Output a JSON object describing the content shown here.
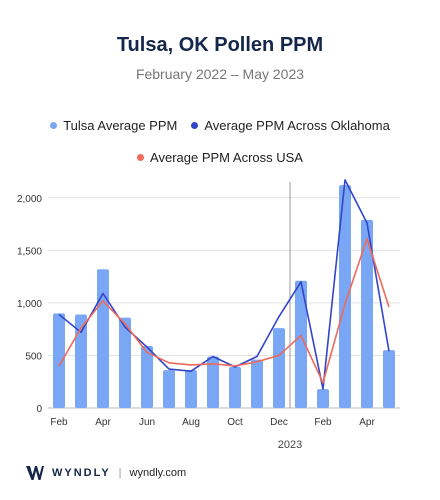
{
  "header": {
    "title": "Tulsa, OK Pollen PPM",
    "subtitle": "February 2022 – May 2023"
  },
  "legend": [
    {
      "label": "Tulsa Average PPM",
      "color": "#7aa7f5",
      "shape": "dot"
    },
    {
      "label": "Average PPM Across Oklahoma",
      "color": "#3345c8",
      "shape": "dot"
    },
    {
      "label": "Average PPM Across USA",
      "color": "#ee6a5a",
      "shape": "dot"
    }
  ],
  "chart_data": {
    "type": "bar",
    "categories": [
      "Feb",
      "Mar",
      "Apr",
      "May",
      "Jun",
      "Jul",
      "Aug",
      "Sep",
      "Oct",
      "Nov",
      "Dec",
      "Jan",
      "Feb",
      "Mar",
      "Apr",
      "May"
    ],
    "x_tick_labels": [
      "Feb",
      "",
      "Apr",
      "",
      "Jun",
      "",
      "Aug",
      "",
      "Oct",
      "",
      "Dec",
      "",
      "Feb",
      "",
      "Apr",
      ""
    ],
    "year_marker": {
      "label": "2023",
      "between": [
        "Dec",
        "Jan"
      ]
    },
    "series": [
      {
        "name": "Tulsa Average PPM",
        "type": "bar",
        "color": "#7aa7f5",
        "values": [
          900,
          890,
          1320,
          860,
          590,
          360,
          360,
          490,
          390,
          460,
          760,
          1210,
          180,
          2120,
          1790,
          550
        ]
      },
      {
        "name": "Average PPM Across Oklahoma",
        "type": "line",
        "color": "#3345c8",
        "values": [
          890,
          720,
          1090,
          770,
          580,
          370,
          350,
          490,
          390,
          490,
          870,
          1200,
          180,
          2170,
          1760,
          540
        ]
      },
      {
        "name": "Average PPM Across USA",
        "type": "line",
        "color": "#ee6a5a",
        "values": [
          400,
          760,
          1020,
          800,
          530,
          430,
          410,
          420,
          400,
          440,
          500,
          690,
          240,
          990,
          1610,
          960
        ]
      }
    ],
    "y_ticks": [
      0,
      500,
      1000,
      1500,
      2000
    ],
    "y_tick_labels": [
      "0",
      "500",
      "1,000",
      "1,500",
      "2,000"
    ],
    "ylim": [
      0,
      2150
    ],
    "grid": true,
    "legend_position": "top"
  },
  "footer": {
    "brand": "WYNDLY",
    "separator": "|",
    "url": "wyndly.com"
  }
}
